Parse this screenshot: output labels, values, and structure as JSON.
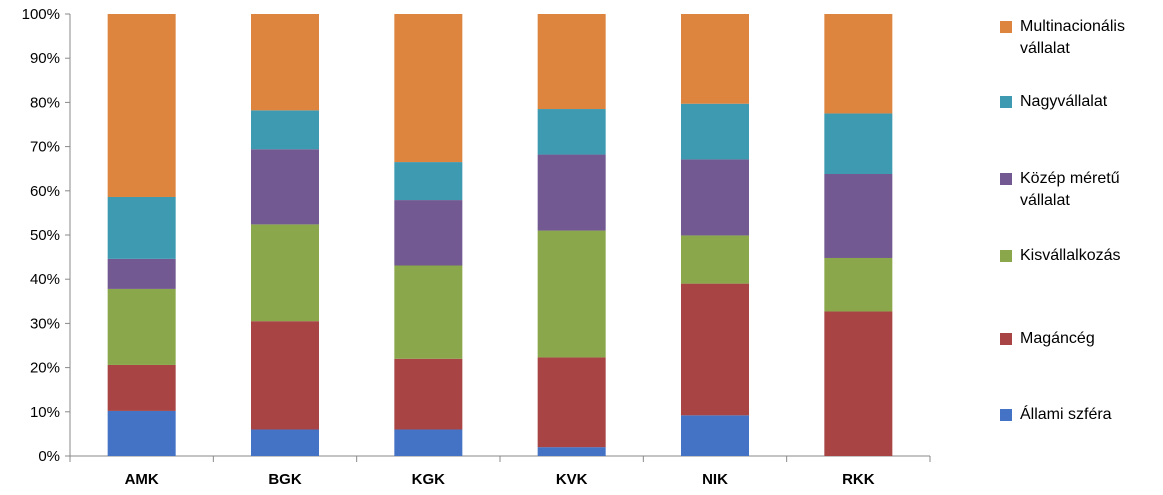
{
  "chart_data": {
    "type": "bar",
    "stacked": true,
    "percent": true,
    "categories": [
      "AMK",
      "BGK",
      "KGK",
      "KVK",
      "NIK",
      "RKK"
    ],
    "series": [
      {
        "name": "Állami szféra",
        "color": "#4472C4",
        "values": [
          10.2,
          6.0,
          6.0,
          2.0,
          9.2,
          0.0
        ]
      },
      {
        "name": "Magáncég",
        "color": "#A84444",
        "values": [
          10.4,
          24.5,
          16.0,
          20.3,
          29.8,
          32.7
        ]
      },
      {
        "name": "Kisvállalkozás",
        "color": "#8AA84B",
        "values": [
          17.2,
          21.9,
          21.1,
          28.7,
          10.9,
          12.1
        ]
      },
      {
        "name": "Közép méretű vállalat",
        "color": "#725991",
        "values": [
          6.8,
          17.0,
          14.8,
          17.2,
          17.2,
          19.0
        ]
      },
      {
        "name": "Nagyvállalat",
        "color": "#3E9AB1",
        "values": [
          14.0,
          8.8,
          8.6,
          10.3,
          12.6,
          13.7
        ]
      },
      {
        "name": "Multinacionális vállalat",
        "color": "#DD853F",
        "values": [
          41.4,
          21.8,
          33.5,
          21.5,
          20.3,
          22.5
        ]
      }
    ],
    "ylim": [
      0,
      100
    ],
    "yticks": [
      "0%",
      "10%",
      "20%",
      "30%",
      "40%",
      "50%",
      "60%",
      "70%",
      "80%",
      "90%",
      "100%"
    ],
    "legend_position": "right",
    "grid": false
  }
}
